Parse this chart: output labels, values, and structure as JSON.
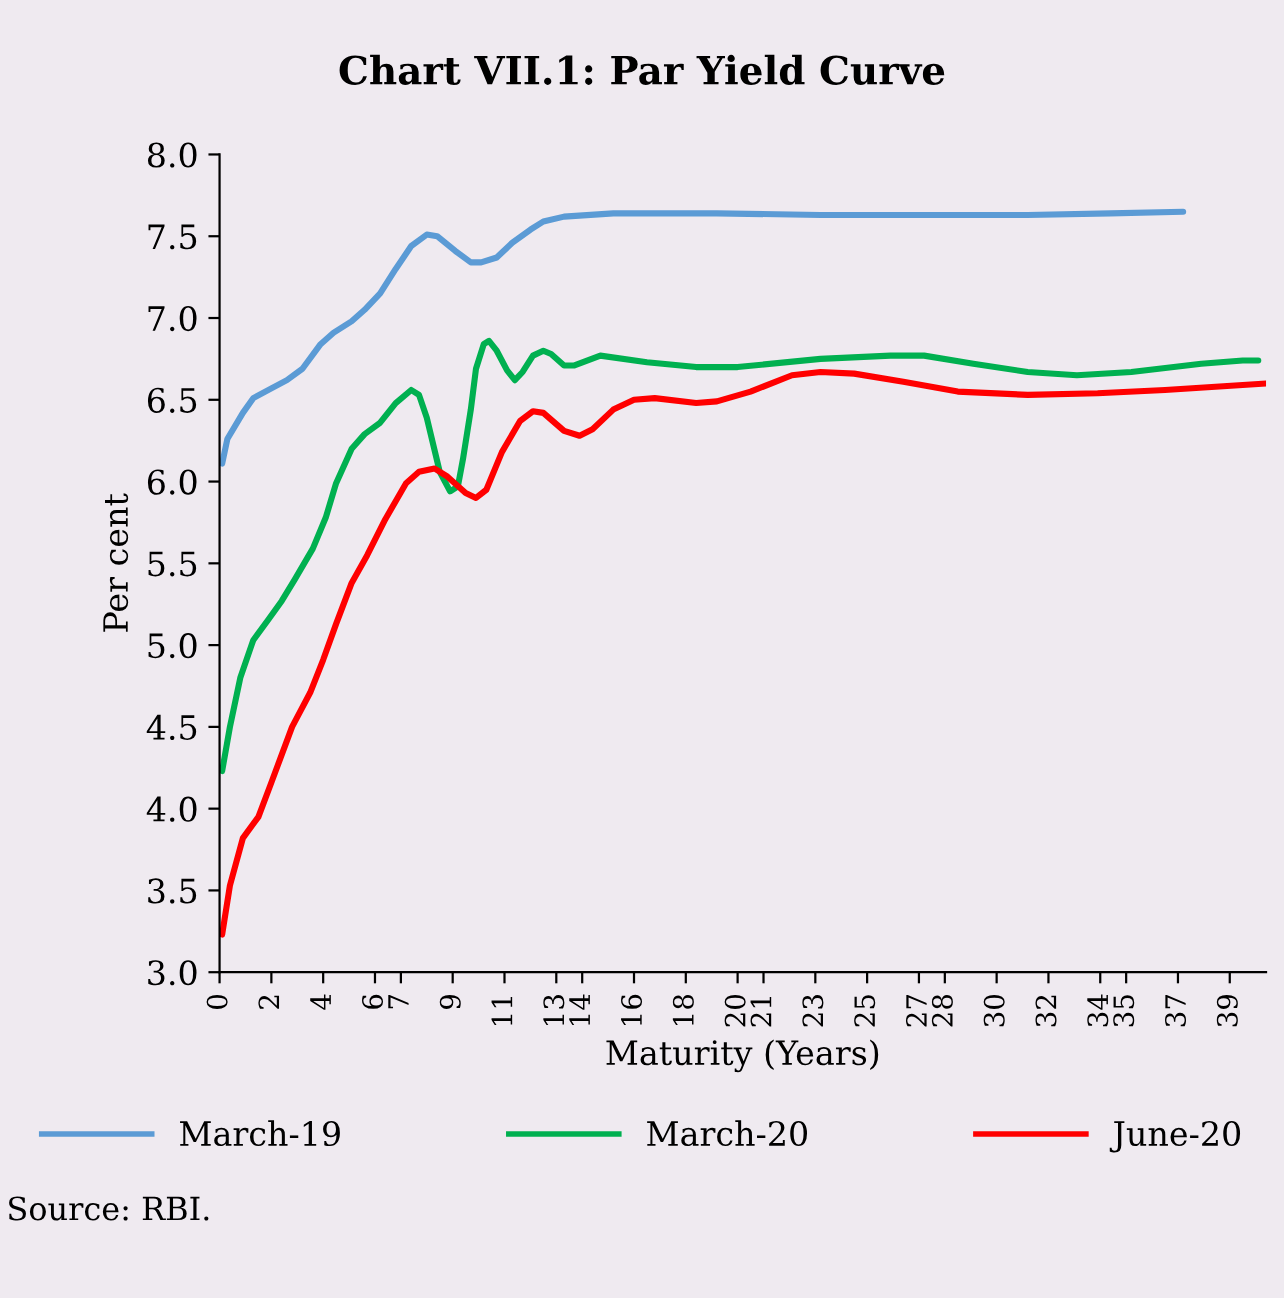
{
  "chart_data": {
    "type": "line",
    "title": "Chart VII.1: Par Yield Curve",
    "xlabel": "Maturity (Years)",
    "ylabel": "Per cent",
    "annotations": [
      "Source: RBI."
    ],
    "xlim": [
      0,
      40.4
    ],
    "xticks": [
      0,
      2,
      4,
      6,
      7,
      9,
      11,
      13,
      14,
      16,
      18,
      20,
      21,
      23,
      25,
      27,
      28,
      30,
      32,
      34,
      35,
      37,
      39
    ],
    "ylim": [
      3,
      8
    ],
    "yticks": [
      {
        "value": 3,
        "label": "3.0"
      },
      {
        "value": 3.5,
        "label": "3.5"
      },
      {
        "value": 4,
        "label": "4.0"
      },
      {
        "value": 4.5,
        "label": "4.5"
      },
      {
        "value": 5,
        "label": "5.0"
      },
      {
        "value": 5.5,
        "label": "5.5"
      },
      {
        "value": 6,
        "label": "6.0"
      },
      {
        "value": 6.5,
        "label": "6.5"
      },
      {
        "value": 7,
        "label": "7.0"
      },
      {
        "value": 7.5,
        "label": "7.5"
      },
      {
        "value": 8,
        "label": "8.0"
      }
    ],
    "grid": false,
    "legend": "bottom",
    "marker": "none",
    "line_style": "solid",
    "series": [
      {
        "name": "March-19",
        "color": "#5b9bd5",
        "x": [
          0.1,
          0.3,
          0.9,
          1.3,
          2.0,
          2.6,
          3.2,
          3.9,
          4.4,
          5.1,
          5.6,
          6.2,
          6.8,
          7.4,
          8.0,
          8.4,
          9.1,
          9.7,
          10.1,
          10.7,
          11.3,
          12.0,
          12.5,
          13.3,
          15.2,
          19.2,
          23.2,
          27.2,
          31.2,
          34.4,
          37.2
        ],
        "values": [
          6.11,
          6.26,
          6.42,
          6.51,
          6.57,
          6.62,
          6.69,
          6.84,
          6.91,
          6.98,
          7.05,
          7.15,
          7.3,
          7.44,
          7.51,
          7.5,
          7.41,
          7.34,
          7.34,
          7.37,
          7.46,
          7.54,
          7.59,
          7.62,
          7.64,
          7.64,
          7.63,
          7.63,
          7.63,
          7.64,
          7.65
        ]
      },
      {
        "name": "March-20",
        "color": "#00b050",
        "x": [
          0.1,
          0.4,
          0.8,
          1.3,
          1.9,
          2.4,
          2.9,
          3.6,
          4.1,
          4.5,
          5.1,
          5.6,
          6.2,
          6.8,
          7.4,
          7.7,
          8.0,
          8.5,
          8.9,
          9.2,
          9.4,
          9.7,
          9.9,
          10.2,
          10.4,
          10.7,
          11.1,
          11.4,
          11.7,
          12.1,
          12.5,
          12.8,
          13.3,
          13.7,
          14.7,
          16.5,
          18.4,
          20.0,
          23.2,
          25.9,
          27.2,
          29.1,
          31.2,
          33.1,
          35.2,
          37.9,
          39.5,
          40.1
        ],
        "values": [
          4.23,
          4.5,
          4.8,
          5.03,
          5.16,
          5.27,
          5.4,
          5.59,
          5.78,
          5.99,
          6.2,
          6.29,
          6.36,
          6.48,
          6.56,
          6.53,
          6.39,
          6.06,
          5.94,
          5.97,
          6.14,
          6.44,
          6.69,
          6.84,
          6.86,
          6.8,
          6.68,
          6.62,
          6.67,
          6.77,
          6.8,
          6.78,
          6.71,
          6.71,
          6.77,
          6.73,
          6.7,
          6.7,
          6.75,
          6.77,
          6.77,
          6.72,
          6.67,
          6.65,
          6.67,
          6.72,
          6.74,
          6.74
        ]
      },
      {
        "name": "June-20",
        "color": "#ff0000",
        "x": [
          0.1,
          0.4,
          0.9,
          1.5,
          2.0,
          2.8,
          3.5,
          4.0,
          4.5,
          5.1,
          5.7,
          6.4,
          7.2,
          7.7,
          8.3,
          8.8,
          9.5,
          9.9,
          10.3,
          10.9,
          11.6,
          12.1,
          12.5,
          13.3,
          13.9,
          14.4,
          15.2,
          16.0,
          16.8,
          18.4,
          19.2,
          20.5,
          22.1,
          23.2,
          24.5,
          26.4,
          28.5,
          31.2,
          33.9,
          36.5,
          40.4
        ],
        "values": [
          3.23,
          3.53,
          3.82,
          3.95,
          4.16,
          4.5,
          4.71,
          4.91,
          5.13,
          5.38,
          5.55,
          5.77,
          5.99,
          6.06,
          6.08,
          6.03,
          5.93,
          5.9,
          5.95,
          6.18,
          6.37,
          6.43,
          6.42,
          6.31,
          6.28,
          6.32,
          6.44,
          6.5,
          6.51,
          6.48,
          6.49,
          6.55,
          6.65,
          6.67,
          6.66,
          6.61,
          6.55,
          6.53,
          6.54,
          6.56,
          6.6
        ]
      }
    ]
  }
}
